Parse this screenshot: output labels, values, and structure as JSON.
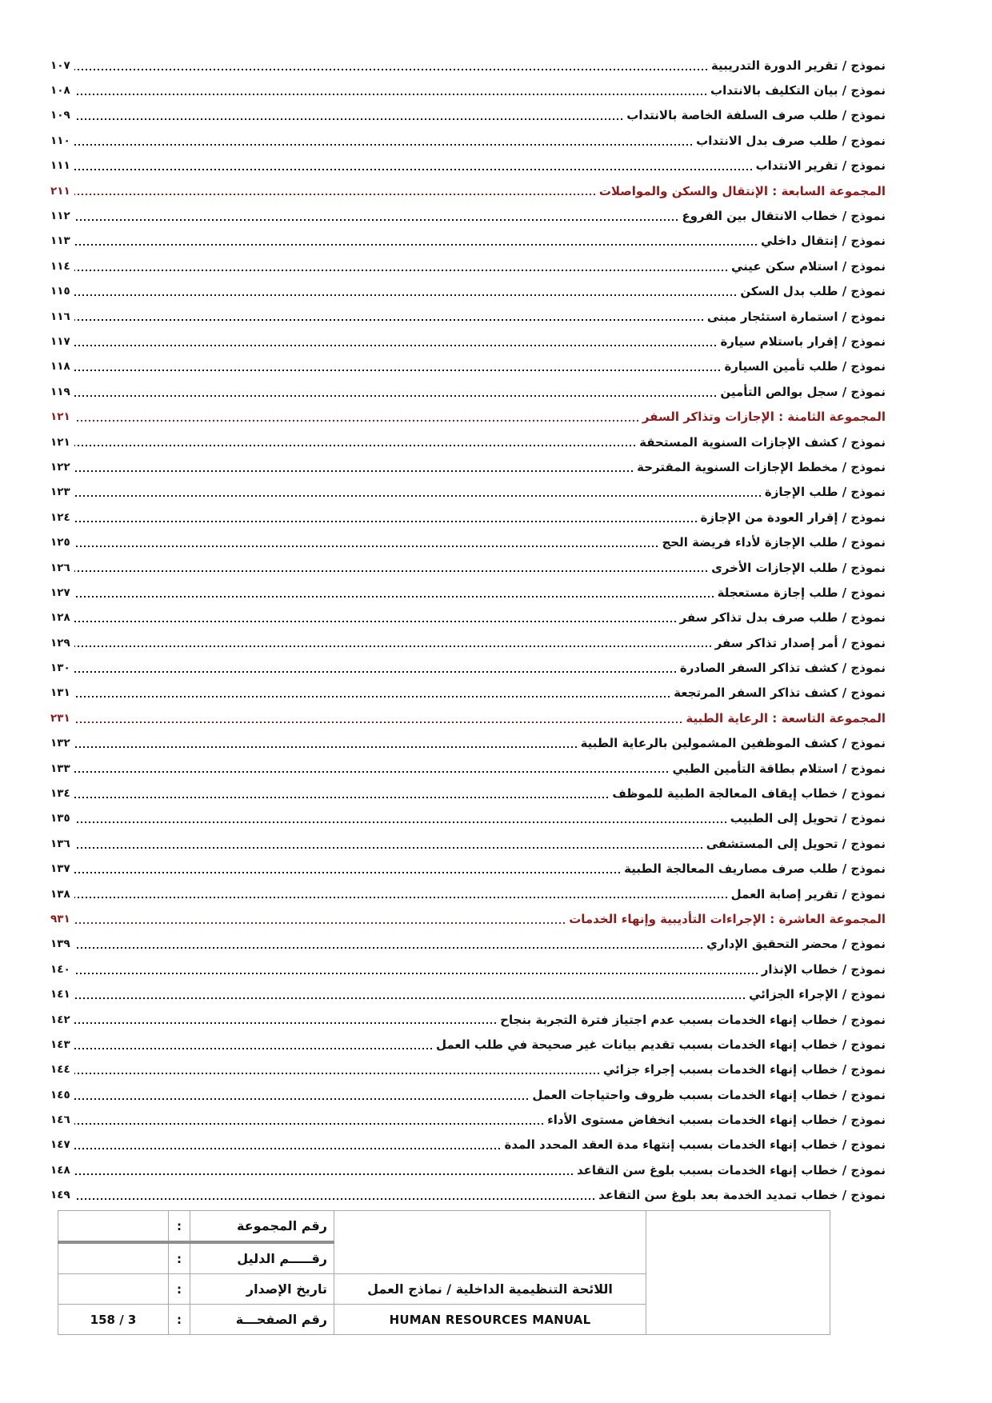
{
  "colors": {
    "accent_red": "#8e1a1a",
    "text": "#141414",
    "table_border": "#a9a9a9"
  },
  "toc": {
    "rows": [
      {
        "type": "entry",
        "title": "نموذج / تقرير الدورة التدريبية",
        "page": "١٠٧"
      },
      {
        "type": "entry",
        "title": "نموذج / بيان التكليف بالانتداب",
        "page": "١٠٨"
      },
      {
        "type": "entry",
        "title": "نموذج / طلب صرف السلفة الخاصة بالانتداب",
        "page": "١٠٩"
      },
      {
        "type": "entry",
        "title": "نموذج / طلب صرف بدل الانتداب",
        "page": "١١٠"
      },
      {
        "type": "entry",
        "title": "نموذج / تقرير الانتداب",
        "page": "١١١"
      },
      {
        "type": "section",
        "title": "المجموعة السابعة : الإنتقال والسكن والمواصلات",
        "page": "٢١١"
      },
      {
        "type": "entry",
        "title": "نموذج / خطاب الانتقال بين الفروع",
        "page": "١١٢"
      },
      {
        "type": "entry",
        "title": "نموذج / إنتقال داخلي",
        "page": "١١٣"
      },
      {
        "type": "entry",
        "title": "نموذج / استلام سكن عيني",
        "page": "١١٤"
      },
      {
        "type": "entry",
        "title": "نموذج / طلب بدل السكن",
        "page": "١١٥"
      },
      {
        "type": "entry",
        "title": "نموذج / استمارة استئجار مبنى",
        "page": "١١٦"
      },
      {
        "type": "entry",
        "title": "نموذج / إقرار باستلام سيارة",
        "page": "١١٧"
      },
      {
        "type": "entry",
        "title": "نموذج / طلب تأمين السيارة",
        "page": "١١٨"
      },
      {
        "type": "entry",
        "title": "نموذج / سجل بوالص التأمين",
        "page": "١١٩"
      },
      {
        "type": "section",
        "title": "المجموعة الثامنة : الإجازات وتذاكر السفر",
        "page": "١٢١"
      },
      {
        "type": "entry",
        "title": "نموذج / كشف الإجازات السنوية المستحقة",
        "page": "١٢١"
      },
      {
        "type": "entry",
        "title": "نموذج / مخطط الإجازات السنوية المقترحة",
        "page": "١٢٢"
      },
      {
        "type": "entry",
        "title": "نموذج / طلب الإجازة",
        "page": "١٢٣"
      },
      {
        "type": "entry",
        "title": "نموذج / إقرار العودة من الإجازة",
        "page": "١٢٤"
      },
      {
        "type": "entry",
        "title": "نموذج / طلب الإجازة لأداء فريضة الحج",
        "page": "١٢٥"
      },
      {
        "type": "entry",
        "title": "نموذج / طلب الإجازات الأخرى",
        "page": "١٢٦"
      },
      {
        "type": "entry",
        "title": "نموذج / طلب إجازة مستعجلة",
        "page": "١٢٧"
      },
      {
        "type": "entry",
        "title": "نموذج / طلب صرف بدل تذاكر سفر",
        "page": "١٢٨"
      },
      {
        "type": "entry",
        "title": "نموذج / أمر إصدار تذاكر سفر",
        "page": "١٢٩"
      },
      {
        "type": "entry",
        "title": "نموذج / كشف تذاكر السفر الصادرة",
        "page": "١٣٠"
      },
      {
        "type": "entry",
        "title": "نموذج / كشف تذاكر السفر المرتجعة",
        "page": "١٣١"
      },
      {
        "type": "section",
        "title": "المجموعة التاسعة : الرعاية الطبية",
        "page": "٢٣١"
      },
      {
        "type": "entry",
        "title": "نموذج / كشف الموظفين المشمولين بالرعاية الطبية",
        "page": "١٣٢"
      },
      {
        "type": "entry",
        "title": "نموذج / استلام بطاقة التأمين الطبي",
        "page": "١٣٣"
      },
      {
        "type": "entry",
        "title": "نموذج / خطاب إيقاف المعالجة الطبية للموظف",
        "page": "١٣٤"
      },
      {
        "type": "entry",
        "title": "نموذج / تحويل إلى الطبيب",
        "page": "١٣٥"
      },
      {
        "type": "entry",
        "title": "نموذج / تحويل إلى المستشفى",
        "page": "١٣٦"
      },
      {
        "type": "entry",
        "title": "نموذج / طلب صرف مصاريف المعالجة الطبية",
        "page": "١٣٧"
      },
      {
        "type": "entry",
        "title": "نموذج / تقرير إصابة العمل",
        "page": "١٣٨"
      },
      {
        "type": "section",
        "title": "المجموعة العاشرة : الإجراءات التأديبية وإنهاء الخدمات",
        "page": "٩٣١"
      },
      {
        "type": "entry",
        "title": "نموذج / محضر التحقيق الإداري",
        "page": "١٣٩"
      },
      {
        "type": "entry",
        "title": "نموذج / خطاب الإنذار",
        "page": "١٤٠"
      },
      {
        "type": "entry",
        "title": "نموذج / الإجراء الجزائي",
        "page": "١٤١"
      },
      {
        "type": "entry",
        "title": "نموذج / خطاب إنهاء الخدمات بسبب عدم اجتياز فترة التجربة بنجاح",
        "page": "١٤٢"
      },
      {
        "type": "entry",
        "title": "نموذج / خطاب إنهاء الخدمات بسبب تقديم بيانات غير صحيحة في طلب العمل",
        "page": "١٤٣"
      },
      {
        "type": "entry",
        "title": "نموذج / خطاب إنهاء الخدمات بسبب إجراء جزائي",
        "page": "١٤٤"
      },
      {
        "type": "entry",
        "title": "نموذج / خطاب إنهاء الخدمات بسبب ظروف واحتياجات العمل",
        "page": "١٤٥"
      },
      {
        "type": "entry",
        "title": "نموذج / خطاب إنهاء الخدمات بسبب انخفاض مستوى الأداء",
        "page": "١٤٦"
      },
      {
        "type": "entry",
        "title": "نموذج / خطاب إنهاء الخدمات بسبب إنتهاء مدة العقد المحدد المدة",
        "page": "١٤٧"
      },
      {
        "type": "entry",
        "title": "نموذج / خطاب إنهاء الخدمات بسبب بلوغ سن التقاعد",
        "page": "١٤٨"
      },
      {
        "type": "entry",
        "title": "نموذج / خطاب تمديد الخدمة بعد بلوغ سن التقاعد",
        "page": "١٤٩"
      }
    ]
  },
  "footer": {
    "title_ar": "اللائحة التنظيمية الداخلية  / نماذج العمل",
    "title_en": "HUMAN RESOURCES MANUAL",
    "rows": [
      {
        "label": "رقم المجموعة",
        "colon": ":",
        "value": ""
      },
      {
        "label": "رقـــــم الدليل",
        "colon": ":",
        "value": ""
      },
      {
        "label": "تاريخ الإصدار",
        "colon": ":",
        "value": ""
      },
      {
        "label": "رقم الصفحـــة",
        "colon": ":",
        "value": "158 / 3"
      }
    ]
  }
}
